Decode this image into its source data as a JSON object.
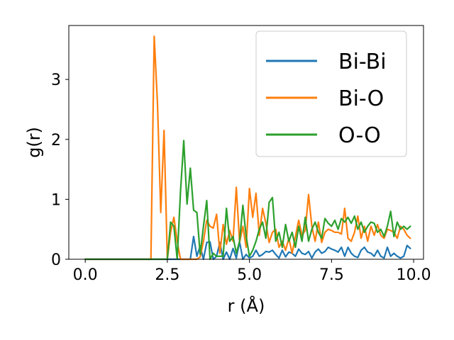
{
  "chart_data": {
    "type": "line",
    "xlabel": "r (Å)",
    "ylabel": "g(r)",
    "xlim": [
      -0.5,
      10.3
    ],
    "ylim": [
      0,
      3.9
    ],
    "xticks": [
      {
        "value": 0.0,
        "label": "0.0"
      },
      {
        "value": 2.5,
        "label": "2.5"
      },
      {
        "value": 5.0,
        "label": "5.0"
      },
      {
        "value": 7.5,
        "label": "7.5"
      },
      {
        "value": 10.0,
        "label": "10.0"
      }
    ],
    "yticks": [
      {
        "value": 0,
        "label": "0"
      },
      {
        "value": 1,
        "label": "1"
      },
      {
        "value": 2,
        "label": "2"
      },
      {
        "value": 3,
        "label": "3"
      }
    ],
    "grid": false,
    "legend_position": "top-right",
    "series": [
      {
        "name": "Bi-Bi",
        "color": "#1f77b4",
        "points": [
          [
            0.0,
            0
          ],
          [
            1.0,
            0
          ],
          [
            2.0,
            0
          ],
          [
            3.0,
            0
          ],
          [
            3.2,
            0
          ],
          [
            3.3,
            0.38
          ],
          [
            3.4,
            0.05
          ],
          [
            3.5,
            0.22
          ],
          [
            3.6,
            0
          ],
          [
            3.7,
            0.28
          ],
          [
            3.8,
            0.29
          ],
          [
            3.9,
            0
          ],
          [
            4.0,
            0.05
          ],
          [
            4.1,
            0.28
          ],
          [
            4.2,
            0
          ],
          [
            4.3,
            0.12
          ],
          [
            4.4,
            0
          ],
          [
            4.5,
            0.18
          ],
          [
            4.6,
            0.02
          ],
          [
            4.7,
            0.29
          ],
          [
            4.8,
            0
          ],
          [
            4.9,
            0.08
          ],
          [
            5.0,
            0.02
          ],
          [
            5.1,
            0.05
          ],
          [
            5.2,
            0.15
          ],
          [
            5.3,
            0.05
          ],
          [
            5.4,
            0.08
          ],
          [
            5.5,
            0.13
          ],
          [
            5.6,
            0.12
          ],
          [
            5.7,
            0.15
          ],
          [
            5.8,
            0.08
          ],
          [
            5.9,
            0.02
          ],
          [
            6.0,
            0.15
          ],
          [
            6.1,
            0.04
          ],
          [
            6.2,
            0.12
          ],
          [
            6.3,
            0.1
          ],
          [
            6.4,
            0.05
          ],
          [
            6.5,
            0.17
          ],
          [
            6.6,
            0.1
          ],
          [
            6.7,
            0.08
          ],
          [
            6.8,
            0.13
          ],
          [
            6.9,
            0.02
          ],
          [
            7.0,
            0.12
          ],
          [
            7.1,
            0.17
          ],
          [
            7.2,
            0.1
          ],
          [
            7.3,
            0.13
          ],
          [
            7.4,
            0.2
          ],
          [
            7.5,
            0.17
          ],
          [
            7.6,
            0.15
          ],
          [
            7.7,
            0.12
          ],
          [
            7.8,
            0.2
          ],
          [
            7.9,
            0.05
          ],
          [
            8.0,
            0.2
          ],
          [
            8.1,
            0.1
          ],
          [
            8.2,
            0.05
          ],
          [
            8.3,
            0.03
          ],
          [
            8.4,
            0.15
          ],
          [
            8.5,
            0.2
          ],
          [
            8.6,
            0.12
          ],
          [
            8.7,
            0.1
          ],
          [
            8.8,
            0.05
          ],
          [
            8.9,
            0.15
          ],
          [
            9.0,
            0.05
          ],
          [
            9.1,
            0.02
          ],
          [
            9.2,
            0.2
          ],
          [
            9.3,
            0.05
          ],
          [
            9.4,
            0.1
          ],
          [
            9.5,
            0.05
          ],
          [
            9.6,
            0.02
          ],
          [
            9.7,
            0.05
          ],
          [
            9.8,
            0.23
          ],
          [
            9.9,
            0.18
          ]
        ]
      },
      {
        "name": "Bi-O",
        "color": "#ff7f0e",
        "points": [
          [
            0.0,
            0
          ],
          [
            1.0,
            0
          ],
          [
            1.9,
            0
          ],
          [
            2.0,
            0
          ],
          [
            2.1,
            3.72
          ],
          [
            2.2,
            2.6
          ],
          [
            2.3,
            0.78
          ],
          [
            2.4,
            2.15
          ],
          [
            2.5,
            0
          ],
          [
            2.6,
            0.45
          ],
          [
            2.7,
            0.7
          ],
          [
            2.8,
            0.3
          ],
          [
            2.9,
            0
          ],
          [
            3.0,
            0
          ],
          [
            3.1,
            0
          ],
          [
            3.2,
            0
          ],
          [
            3.3,
            0
          ],
          [
            3.4,
            0
          ],
          [
            3.5,
            0.04
          ],
          [
            3.6,
            0.3
          ],
          [
            3.7,
            0.65
          ],
          [
            3.8,
            0.55
          ],
          [
            3.9,
            0.52
          ],
          [
            4.0,
            0.75
          ],
          [
            4.1,
            0.1
          ],
          [
            4.2,
            0.58
          ],
          [
            4.3,
            0.25
          ],
          [
            4.4,
            0.48
          ],
          [
            4.5,
            0.3
          ],
          [
            4.6,
            1.2
          ],
          [
            4.7,
            0.28
          ],
          [
            4.8,
            0.55
          ],
          [
            4.9,
            0.2
          ],
          [
            5.0,
            1.18
          ],
          [
            5.1,
            0.7
          ],
          [
            5.2,
            1.1
          ],
          [
            5.3,
            0.4
          ],
          [
            5.4,
            0.85
          ],
          [
            5.5,
            0.6
          ],
          [
            5.6,
            0.28
          ],
          [
            5.7,
            0.45
          ],
          [
            5.8,
            0.5
          ],
          [
            5.9,
            0.2
          ],
          [
            6.0,
            0.3
          ],
          [
            6.1,
            0.15
          ],
          [
            6.2,
            0.35
          ],
          [
            6.3,
            0.1
          ],
          [
            6.4,
            0.38
          ],
          [
            6.5,
            0.65
          ],
          [
            6.6,
            0.4
          ],
          [
            6.7,
            0.48
          ],
          [
            6.8,
            1.08
          ],
          [
            6.9,
            0.55
          ],
          [
            7.0,
            0.3
          ],
          [
            7.1,
            0.62
          ],
          [
            7.2,
            0.28
          ],
          [
            7.3,
            0.45
          ],
          [
            7.4,
            0.5
          ],
          [
            7.5,
            0.48
          ],
          [
            7.6,
            0.45
          ],
          [
            7.7,
            0.45
          ],
          [
            7.8,
            0.42
          ],
          [
            7.9,
            0.85
          ],
          [
            8.0,
            0.35
          ],
          [
            8.1,
            0.3
          ],
          [
            8.2,
            0.45
          ],
          [
            8.3,
            0.72
          ],
          [
            8.4,
            0.35
          ],
          [
            8.5,
            0.55
          ],
          [
            8.6,
            0.3
          ],
          [
            8.7,
            0.55
          ],
          [
            8.8,
            0.4
          ],
          [
            8.9,
            0.58
          ],
          [
            9.0,
            0.4
          ],
          [
            9.1,
            0.35
          ],
          [
            9.2,
            0.5
          ],
          [
            9.3,
            0.48
          ],
          [
            9.4,
            0.45
          ],
          [
            9.5,
            0.35
          ],
          [
            9.6,
            0.55
          ],
          [
            9.7,
            0.5
          ],
          [
            9.8,
            0.4
          ],
          [
            9.9,
            0.35
          ]
        ]
      },
      {
        "name": "O-O",
        "color": "#2ca02c",
        "points": [
          [
            0.0,
            0
          ],
          [
            1.0,
            0
          ],
          [
            2.0,
            0
          ],
          [
            2.5,
            0
          ],
          [
            2.6,
            0.62
          ],
          [
            2.7,
            0.55
          ],
          [
            2.8,
            0
          ],
          [
            2.9,
            1.12
          ],
          [
            3.0,
            1.98
          ],
          [
            3.1,
            0.92
          ],
          [
            3.2,
            1.52
          ],
          [
            3.3,
            0.82
          ],
          [
            3.4,
            0.78
          ],
          [
            3.5,
            0.08
          ],
          [
            3.6,
            0.55
          ],
          [
            3.7,
            0.98
          ],
          [
            3.8,
            0
          ],
          [
            3.9,
            0.1
          ],
          [
            4.0,
            0.05
          ],
          [
            4.1,
            0.05
          ],
          [
            4.2,
            0.05
          ],
          [
            4.3,
            0.85
          ],
          [
            4.4,
            0.3
          ],
          [
            4.5,
            0.38
          ],
          [
            4.6,
            0.1
          ],
          [
            4.7,
            0.3
          ],
          [
            4.8,
            0.9
          ],
          [
            4.9,
            0.38
          ],
          [
            5.0,
            0.05
          ],
          [
            5.1,
            0.15
          ],
          [
            5.2,
            0.3
          ],
          [
            5.3,
            0.5
          ],
          [
            5.4,
            0.62
          ],
          [
            5.5,
            0.35
          ],
          [
            5.6,
            0.95
          ],
          [
            5.7,
            1.03
          ],
          [
            5.8,
            0.3
          ],
          [
            5.9,
            0.45
          ],
          [
            6.0,
            0.2
          ],
          [
            6.1,
            0.58
          ],
          [
            6.2,
            0.3
          ],
          [
            6.3,
            0.45
          ],
          [
            6.4,
            0.2
          ],
          [
            6.5,
            0.55
          ],
          [
            6.6,
            0.3
          ],
          [
            6.7,
            0.7
          ],
          [
            6.8,
            0.3
          ],
          [
            6.9,
            0.5
          ],
          [
            7.0,
            0.62
          ],
          [
            7.1,
            0.45
          ],
          [
            7.2,
            0.35
          ],
          [
            7.3,
            0.68
          ],
          [
            7.4,
            0.6
          ],
          [
            7.5,
            0.55
          ],
          [
            7.6,
            0.65
          ],
          [
            7.7,
            0.5
          ],
          [
            7.8,
            0.68
          ],
          [
            7.9,
            0.62
          ],
          [
            8.0,
            0.7
          ],
          [
            8.1,
            0.6
          ],
          [
            8.2,
            0.72
          ],
          [
            8.3,
            0.5
          ],
          [
            8.4,
            0.62
          ],
          [
            8.5,
            0.45
          ],
          [
            8.6,
            0.55
          ],
          [
            8.7,
            0.62
          ],
          [
            8.8,
            0.6
          ],
          [
            8.9,
            0.45
          ],
          [
            9.0,
            0.5
          ],
          [
            9.1,
            0.38
          ],
          [
            9.2,
            0.55
          ],
          [
            9.3,
            0.8
          ],
          [
            9.4,
            0.38
          ],
          [
            9.5,
            0.62
          ],
          [
            9.6,
            0.5
          ],
          [
            9.7,
            0.55
          ],
          [
            9.8,
            0.5
          ],
          [
            9.9,
            0.55
          ]
        ]
      }
    ]
  }
}
